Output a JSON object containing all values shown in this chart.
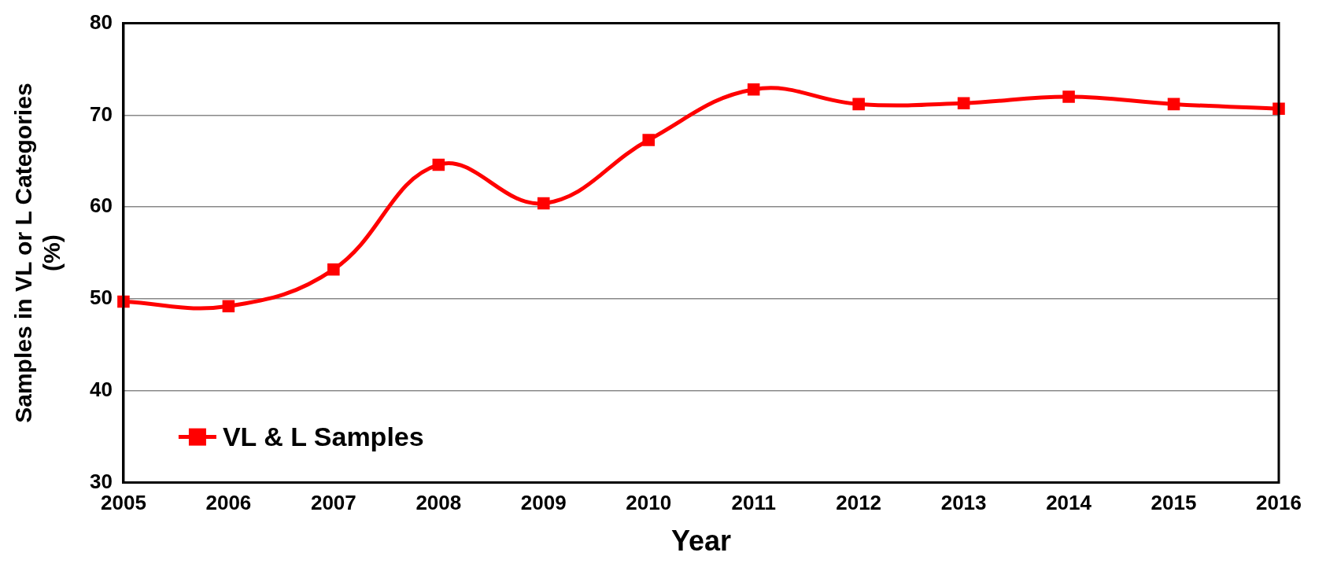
{
  "chart_data": {
    "type": "line",
    "xlabel": "Year",
    "ylabel": "Samples in VL or L Categories (%)",
    "categories": [
      "2005",
      "2006",
      "2007",
      "2008",
      "2009",
      "2010",
      "2011",
      "2012",
      "2013",
      "2014",
      "2015",
      "2016"
    ],
    "series": [
      {
        "name": "VL & L Samples",
        "color": "#ff0000",
        "values": [
          49.7,
          49.2,
          53.2,
          64.6,
          60.4,
          67.3,
          72.8,
          71.2,
          71.3,
          72.0,
          71.2,
          70.7
        ]
      }
    ],
    "ylim": [
      30,
      80
    ],
    "yticks": [
      30,
      40,
      50,
      60,
      70,
      80
    ],
    "grid": "y",
    "legend": "bottom left",
    "marker": "square",
    "line_style": "solid"
  }
}
